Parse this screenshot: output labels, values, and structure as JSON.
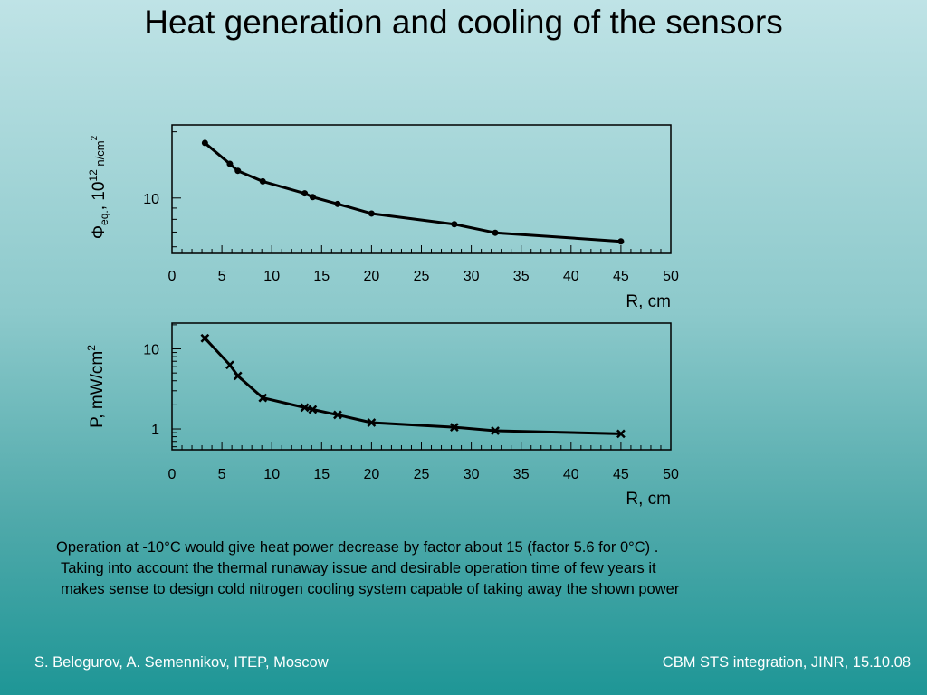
{
  "slide": {
    "title": "Heat generation and cooling of the sensors",
    "caption": [
      "Operation at   -10°C would give  heat power decrease by factor about 15 (factor 5.6 for 0°C) .",
      "Taking into account the thermal runaway issue and desirable operation time of few years it",
      "makes sense to design cold nitrogen cooling system capable of taking away the shown power"
    ],
    "footer_left": "S. Belogurov, A. Semennikov, ITEP, Moscow",
    "footer_right": "CBM STS integration, JINR,  15.10.08"
  },
  "chart_data": [
    {
      "type": "line",
      "marker": "circle",
      "x": [
        3.3,
        5.8,
        6.6,
        9.1,
        13.3,
        14.1,
        16.6,
        20,
        28.3,
        32.4,
        45
      ],
      "y": [
        17.8,
        14.3,
        13.3,
        11.9,
        10.5,
        10.1,
        9.4,
        8.5,
        7.6,
        6.95,
        6.35
      ],
      "xlim": [
        0,
        50
      ],
      "ylog": true,
      "ylim": [
        5.6,
        21.5
      ],
      "xticks": [
        "0",
        "5",
        "10",
        "15",
        "20",
        "25",
        "30",
        "35",
        "40",
        "45",
        "50"
      ],
      "yticks": [
        {
          "value": 10,
          "label": "10"
        }
      ],
      "xlabel": "R, cm",
      "ylabel": {
        "main": "Φ",
        "sub": "eq.",
        "mid": ", 10",
        "sup": "12",
        "unit": " n/cm",
        "unit_sup": "2"
      },
      "line_color": "#000000"
    },
    {
      "type": "line",
      "marker": "x",
      "x": [
        3.3,
        5.8,
        6.6,
        9.1,
        13.3,
        14.1,
        16.6,
        20,
        28.3,
        32.4,
        45
      ],
      "y": [
        13.6,
        6.3,
        4.6,
        2.45,
        1.85,
        1.75,
        1.5,
        1.2,
        1.05,
        0.95,
        0.87
      ],
      "xlim": [
        0,
        50
      ],
      "ylog": true,
      "ylim": [
        0.55,
        21
      ],
      "xticks": [
        "0",
        "5",
        "10",
        "15",
        "20",
        "25",
        "30",
        "35",
        "40",
        "45",
        "50"
      ],
      "yticks": [
        {
          "value": 10,
          "label": "10"
        },
        {
          "value": 1,
          "label": "1"
        }
      ],
      "xlabel": "R, cm",
      "ylabel": {
        "main": "P, mW/cm",
        "sup": "2"
      },
      "line_color": "#000000"
    }
  ]
}
